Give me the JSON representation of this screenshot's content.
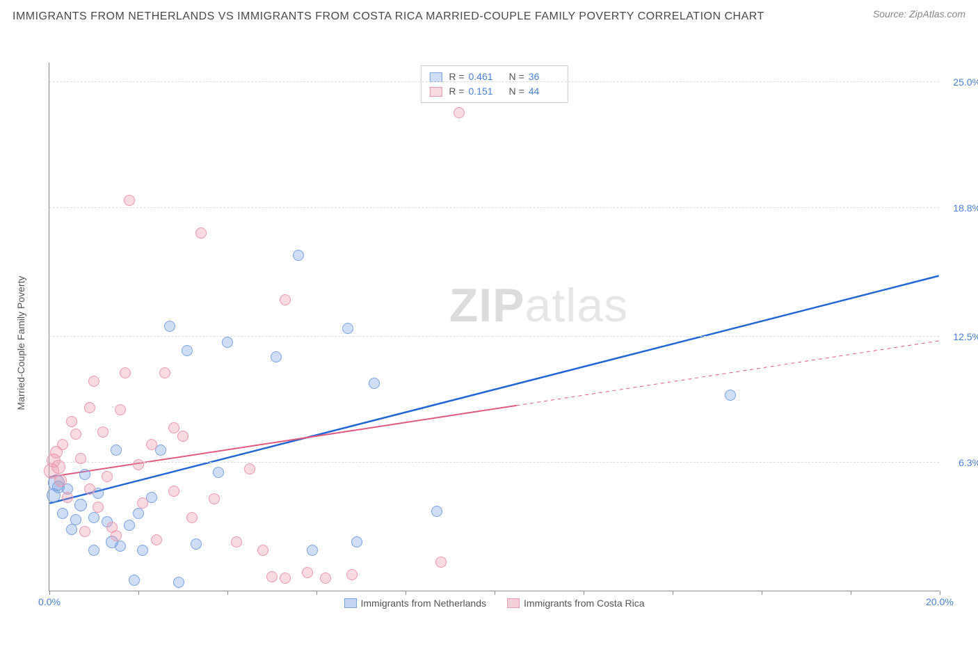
{
  "title": "IMMIGRANTS FROM NETHERLANDS VS IMMIGRANTS FROM COSTA RICA MARRIED-COUPLE FAMILY POVERTY CORRELATION CHART",
  "source_label": "Source: ",
  "source_name": "ZipAtlas.com",
  "ylabel": "Married-Couple Family Poverty",
  "watermark_zip": "ZIP",
  "watermark_atlas": "atlas",
  "chart": {
    "type": "scatter",
    "xlim": [
      0,
      20
    ],
    "ylim": [
      0,
      26
    ],
    "x_ticks": [
      0,
      2,
      4,
      6,
      8,
      10,
      12,
      14,
      16,
      18,
      20
    ],
    "x_tick_labels": {
      "0": "0.0%",
      "20": "20.0%"
    },
    "y_gridlines": [
      6.3,
      12.5,
      18.8,
      25.0
    ],
    "y_grid_labels": [
      "6.3%",
      "12.5%",
      "18.8%",
      "25.0%"
    ],
    "background_color": "#ffffff",
    "grid_color": "#dddddd",
    "axis_color": "#888888",
    "label_color_blue": "#4a7fd8",
    "series": [
      {
        "name": "Immigrants from Netherlands",
        "color_fill": "rgba(120,160,225,0.35)",
        "color_stroke": "#7aa3e0",
        "trend_color": "#2066d6",
        "trend_width": 2.5,
        "R": "0.461",
        "N": "36",
        "trend": {
          "x1": 0,
          "y1": 4.3,
          "x2": 20,
          "y2": 15.5,
          "solid_until": 20
        },
        "points": [
          {
            "x": 0.1,
            "y": 4.7,
            "r": 10
          },
          {
            "x": 0.15,
            "y": 5.3,
            "r": 12
          },
          {
            "x": 0.2,
            "y": 5.1,
            "r": 9
          },
          {
            "x": 0.3,
            "y": 3.8,
            "r": 8
          },
          {
            "x": 0.4,
            "y": 5.0,
            "r": 8
          },
          {
            "x": 0.5,
            "y": 3.0,
            "r": 8
          },
          {
            "x": 0.6,
            "y": 3.5,
            "r": 8
          },
          {
            "x": 0.7,
            "y": 4.2,
            "r": 9
          },
          {
            "x": 0.8,
            "y": 5.7,
            "r": 8
          },
          {
            "x": 1.0,
            "y": 2.0,
            "r": 8
          },
          {
            "x": 1.0,
            "y": 3.6,
            "r": 8
          },
          {
            "x": 1.1,
            "y": 4.8,
            "r": 8
          },
          {
            "x": 1.3,
            "y": 3.4,
            "r": 8
          },
          {
            "x": 1.4,
            "y": 2.4,
            "r": 9
          },
          {
            "x": 1.5,
            "y": 6.9,
            "r": 8
          },
          {
            "x": 1.6,
            "y": 2.2,
            "r": 8
          },
          {
            "x": 1.8,
            "y": 3.2,
            "r": 8
          },
          {
            "x": 1.9,
            "y": 0.5,
            "r": 8
          },
          {
            "x": 2.0,
            "y": 3.8,
            "r": 8
          },
          {
            "x": 2.1,
            "y": 2.0,
            "r": 8
          },
          {
            "x": 2.3,
            "y": 4.6,
            "r": 8
          },
          {
            "x": 2.5,
            "y": 6.9,
            "r": 8
          },
          {
            "x": 2.7,
            "y": 13.0,
            "r": 8
          },
          {
            "x": 2.9,
            "y": 0.4,
            "r": 8
          },
          {
            "x": 3.1,
            "y": 11.8,
            "r": 8
          },
          {
            "x": 3.3,
            "y": 2.3,
            "r": 8
          },
          {
            "x": 3.8,
            "y": 5.8,
            "r": 8
          },
          {
            "x": 4.0,
            "y": 12.2,
            "r": 8
          },
          {
            "x": 5.1,
            "y": 11.5,
            "r": 8
          },
          {
            "x": 5.6,
            "y": 16.5,
            "r": 8
          },
          {
            "x": 6.7,
            "y": 12.9,
            "r": 8
          },
          {
            "x": 6.9,
            "y": 2.4,
            "r": 8
          },
          {
            "x": 7.3,
            "y": 10.2,
            "r": 8
          },
          {
            "x": 8.7,
            "y": 3.9,
            "r": 8
          },
          {
            "x": 15.3,
            "y": 9.6,
            "r": 8
          },
          {
            "x": 5.9,
            "y": 2.0,
            "r": 8
          }
        ]
      },
      {
        "name": "Immigrants from Costa Rica",
        "color_fill": "rgba(235,150,170,0.35)",
        "color_stroke": "#e99ab0",
        "trend_color": "#e05a7d",
        "trend_width": 2,
        "R": "0.151",
        "N": "44",
        "trend": {
          "x1": 0,
          "y1": 5.6,
          "x2": 20,
          "y2": 12.3,
          "solid_until": 10.5
        },
        "points": [
          {
            "x": 0.05,
            "y": 5.9,
            "r": 11
          },
          {
            "x": 0.1,
            "y": 6.4,
            "r": 10
          },
          {
            "x": 0.15,
            "y": 6.8,
            "r": 9
          },
          {
            "x": 0.2,
            "y": 6.1,
            "r": 10
          },
          {
            "x": 0.25,
            "y": 5.4,
            "r": 9
          },
          {
            "x": 0.3,
            "y": 7.2,
            "r": 8
          },
          {
            "x": 0.4,
            "y": 4.6,
            "r": 8
          },
          {
            "x": 0.5,
            "y": 8.3,
            "r": 8
          },
          {
            "x": 0.6,
            "y": 7.7,
            "r": 8
          },
          {
            "x": 0.7,
            "y": 6.5,
            "r": 8
          },
          {
            "x": 0.8,
            "y": 2.9,
            "r": 8
          },
          {
            "x": 0.9,
            "y": 5.0,
            "r": 8
          },
          {
            "x": 1.0,
            "y": 10.3,
            "r": 8
          },
          {
            "x": 1.1,
            "y": 4.1,
            "r": 8
          },
          {
            "x": 1.2,
            "y": 7.8,
            "r": 8
          },
          {
            "x": 1.3,
            "y": 5.6,
            "r": 8
          },
          {
            "x": 1.4,
            "y": 3.1,
            "r": 8
          },
          {
            "x": 1.6,
            "y": 8.9,
            "r": 8
          },
          {
            "x": 1.7,
            "y": 10.7,
            "r": 8
          },
          {
            "x": 1.8,
            "y": 19.2,
            "r": 8
          },
          {
            "x": 2.0,
            "y": 6.2,
            "r": 8
          },
          {
            "x": 2.1,
            "y": 4.3,
            "r": 8
          },
          {
            "x": 2.3,
            "y": 7.2,
            "r": 8
          },
          {
            "x": 2.4,
            "y": 2.5,
            "r": 8
          },
          {
            "x": 2.6,
            "y": 10.7,
            "r": 8
          },
          {
            "x": 2.8,
            "y": 4.9,
            "r": 8
          },
          {
            "x": 2.8,
            "y": 8.0,
            "r": 8
          },
          {
            "x": 3.0,
            "y": 7.6,
            "r": 8
          },
          {
            "x": 3.2,
            "y": 3.6,
            "r": 8
          },
          {
            "x": 3.4,
            "y": 17.6,
            "r": 8
          },
          {
            "x": 3.7,
            "y": 4.5,
            "r": 8
          },
          {
            "x": 4.2,
            "y": 2.4,
            "r": 8
          },
          {
            "x": 4.5,
            "y": 6.0,
            "r": 8
          },
          {
            "x": 5.0,
            "y": 0.7,
            "r": 8
          },
          {
            "x": 5.3,
            "y": 14.3,
            "r": 8
          },
          {
            "x": 5.3,
            "y": 0.6,
            "r": 8
          },
          {
            "x": 5.8,
            "y": 0.9,
            "r": 8
          },
          {
            "x": 6.2,
            "y": 0.6,
            "r": 8
          },
          {
            "x": 6.8,
            "y": 0.8,
            "r": 8
          },
          {
            "x": 8.8,
            "y": 1.4,
            "r": 8
          },
          {
            "x": 9.2,
            "y": 23.5,
            "r": 8
          },
          {
            "x": 4.8,
            "y": 2.0,
            "r": 8
          },
          {
            "x": 1.5,
            "y": 2.7,
            "r": 8
          },
          {
            "x": 0.9,
            "y": 9.0,
            "r": 8
          }
        ]
      }
    ]
  },
  "legend_bottom": [
    {
      "swatch_fill": "rgba(120,160,225,0.45)",
      "swatch_stroke": "#7aa3e0",
      "label": "Immigrants from Netherlands"
    },
    {
      "swatch_fill": "rgba(235,150,170,0.45)",
      "swatch_stroke": "#e99ab0",
      "label": "Immigrants from Costa Rica"
    }
  ]
}
